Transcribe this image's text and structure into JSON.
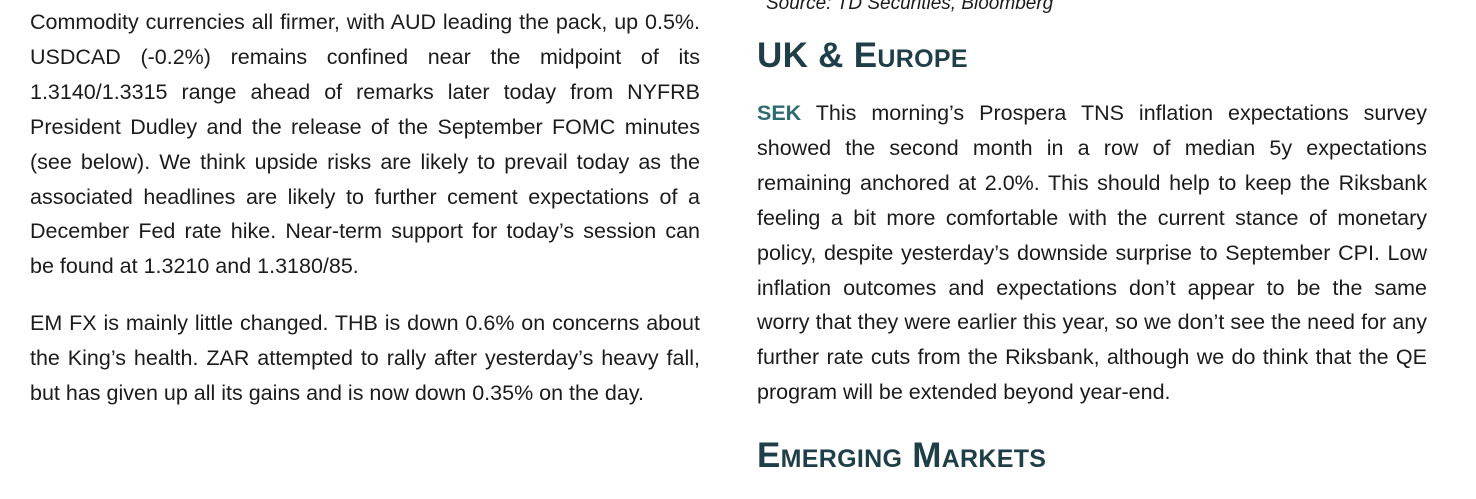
{
  "left_column": {
    "paragraph_1": "Commodity currencies all firmer, with AUD leading the pack, up 0.5%. USDCAD (-0.2%) remains confined near the midpoint of its 1.3140/1.3315 range ahead of remarks later today from NYFRB President Dudley and the release of the September FOMC minutes (see below). We think upside risks are likely to prevail today as the associated headlines are likely to further cement expectations of a December Fed rate hike. Near-term support for today’s session can be found at 1.3210 and 1.3180/85.",
    "paragraph_2": "EM FX is mainly little changed. THB is down 0.6% on concerns about the King’s health. ZAR attempted to rally after yesterday’s heavy fall, but has given up all its gains and is now down 0.35% on the day."
  },
  "right_column": {
    "source_note": "Source: TD Securities, Bloomberg",
    "heading_uk_europe": "UK & Europe",
    "sek_tag": "SEK",
    "sek_paragraph": " This morning’s Prospera TNS inflation expectations survey showed the second month in a row of median 5y expectations remaining anchored at 2.0%. This should help to keep the Riksbank feeling a bit more comfortable with the current stance of monetary policy, despite yesterday’s downside surprise to September CPI. Low inflation outcomes and expectations don’t appear to be the same worry that they were earlier this year, so we don’t see the need for any further rate cuts from the Riksbank, although we do think that the QE program will be extended beyond year-end.",
    "heading_emerging_markets": "Emerging Markets"
  },
  "colors": {
    "heading": "#1f3f48",
    "tag": "#2e6b6f",
    "body_text": "#1b1b1b"
  }
}
